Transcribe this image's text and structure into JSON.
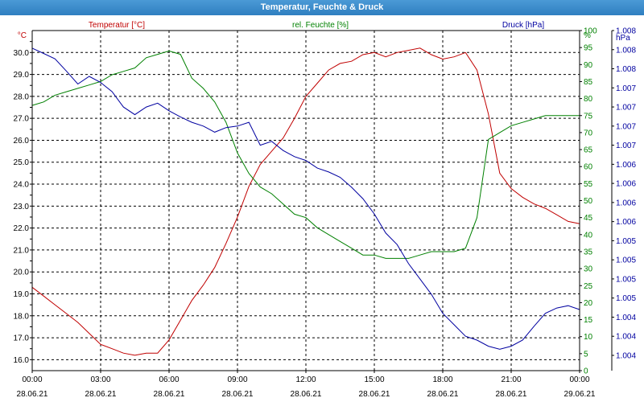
{
  "window": {
    "title": "Temperatur, Feuchte & Druck"
  },
  "colors": {
    "temperature": "#c00000",
    "humidity": "#008000",
    "pressure": "#0000a0",
    "axis": "#000000",
    "grid": "#000000"
  },
  "chart_data": {
    "type": "line",
    "title": "Temperatur, Feuchte & Druck",
    "grid": true,
    "x_ticks": [
      {
        "time": "00:00",
        "date": "28.06.21"
      },
      {
        "time": "03:00",
        "date": "28.06.21"
      },
      {
        "time": "06:00",
        "date": "28.06.21"
      },
      {
        "time": "09:00",
        "date": "28.06.21"
      },
      {
        "time": "12:00",
        "date": "28.06.21"
      },
      {
        "time": "15:00",
        "date": "28.06.21"
      },
      {
        "time": "18:00",
        "date": "28.06.21"
      },
      {
        "time": "21:00",
        "date": "28.06.21"
      },
      {
        "time": "00:00",
        "date": "29.06.21"
      }
    ],
    "x_range_hours": [
      0,
      24
    ],
    "axes": {
      "temperature": {
        "label": "Temperatur [°C]",
        "unit": "°C",
        "range": [
          15.5,
          31.0
        ],
        "ticks": [
          "16.0",
          "16.5",
          "17.0",
          "17.5",
          "18.0",
          "18.5",
          "19.0",
          "19.5",
          "20.0",
          "20.5",
          "21.0",
          "21.5",
          "22.0",
          "22.5",
          "23.0",
          "23.5",
          "24.0",
          "24.5",
          "25.0",
          "25.5",
          "26.0",
          "26.5",
          "27.0",
          "27.5",
          "28.0",
          "28.5",
          "29.0",
          "29.5",
          "30.0",
          "30.5"
        ],
        "tick_values": [
          16.0,
          16.5,
          17.0,
          17.5,
          18.0,
          18.5,
          19.0,
          19.5,
          20.0,
          20.5,
          21.0,
          21.5,
          22.0,
          22.5,
          23.0,
          23.5,
          24.0,
          24.5,
          25.0,
          25.5,
          26.0,
          26.5,
          27.0,
          27.5,
          28.0,
          28.5,
          29.0,
          29.5,
          30.0,
          30.5
        ]
      },
      "humidity": {
        "label": "rel. Feuchte [%]",
        "unit": "%",
        "range": [
          0,
          100
        ],
        "ticks": [
          "0",
          "5",
          "10",
          "15",
          "20",
          "25",
          "30",
          "35",
          "40",
          "45",
          "50",
          "55",
          "60",
          "65",
          "70",
          "75",
          "80",
          "85",
          "90",
          "95",
          "100"
        ],
        "tick_values": [
          0,
          5,
          10,
          15,
          20,
          25,
          30,
          35,
          40,
          45,
          50,
          55,
          60,
          65,
          70,
          75,
          80,
          85,
          90,
          95,
          100
        ]
      },
      "pressure": {
        "label": "Druck [hPa]",
        "unit": "hPa",
        "range": [
          1003.8,
          1008.25
        ],
        "ticks": [
          "1.004",
          "1.004",
          "1.004",
          "1.005",
          "1.005",
          "1.005",
          "1.005",
          "1.006",
          "1.006",
          "1.006",
          "1.006",
          "1.007",
          "1.007",
          "1.007",
          "1.007",
          "1.008",
          "1.008",
          "1.008"
        ],
        "tick_values": [
          1004.0,
          1004.25,
          1004.5,
          1004.75,
          1005.0,
          1005.25,
          1005.5,
          1005.75,
          1006.0,
          1006.25,
          1006.5,
          1006.75,
          1007.0,
          1007.25,
          1007.5,
          1007.75,
          1008.0,
          1008.25
        ]
      }
    },
    "series": [
      {
        "name": "Temperatur [°C]",
        "axis": "temperature",
        "x": [
          0,
          0.5,
          1,
          1.5,
          2,
          2.5,
          3,
          3.5,
          4,
          4.5,
          5,
          5.5,
          6,
          6.5,
          7,
          7.5,
          8,
          8.5,
          9,
          9.5,
          10,
          10.5,
          11,
          11.5,
          12,
          12.5,
          13,
          13.5,
          14,
          14.5,
          15,
          15.5,
          16,
          16.5,
          17,
          17.5,
          18,
          18.5,
          19,
          19.5,
          20,
          20.5,
          21,
          21.5,
          22,
          22.5,
          23,
          23.5,
          24
        ],
        "values": [
          19.3,
          18.9,
          18.5,
          18.1,
          17.7,
          17.2,
          16.7,
          16.5,
          16.3,
          16.2,
          16.3,
          16.3,
          16.9,
          17.8,
          18.7,
          19.4,
          20.2,
          21.3,
          22.5,
          23.9,
          24.9,
          25.5,
          26.1,
          27.0,
          28.0,
          28.6,
          29.2,
          29.5,
          29.6,
          29.9,
          30.0,
          29.8,
          30.0,
          30.1,
          30.2,
          29.9,
          29.7,
          29.8,
          30.0,
          29.2,
          27.2,
          24.5,
          23.8,
          23.4,
          23.1,
          22.9,
          22.6,
          22.3,
          22.2
        ]
      },
      {
        "name": "rel. Feuchte [%]",
        "axis": "humidity",
        "x": [
          0,
          0.5,
          1,
          1.5,
          2,
          2.5,
          3,
          3.5,
          4,
          4.5,
          5,
          5.5,
          6,
          6.5,
          7,
          7.5,
          8,
          8.5,
          9,
          9.5,
          10,
          10.5,
          11,
          11.5,
          12,
          12.5,
          13,
          13.5,
          14,
          14.5,
          15,
          15.5,
          16,
          16.5,
          17,
          17.5,
          18,
          18.5,
          19,
          19.5,
          20,
          20.5,
          21,
          21.5,
          22,
          22.5,
          23,
          23.5,
          24
        ],
        "values": [
          78,
          79,
          81,
          82,
          83,
          84,
          85,
          87,
          88,
          89,
          92,
          93,
          94,
          93,
          86,
          83,
          79,
          73,
          64,
          58,
          54,
          52,
          49,
          46,
          45,
          42,
          40,
          38,
          36,
          34,
          34,
          33,
          33,
          33,
          34,
          35,
          35,
          35,
          36,
          45,
          68,
          70,
          72,
          73,
          74,
          75,
          75,
          75,
          75
        ]
      },
      {
        "name": "Druck [hPa]",
        "axis": "pressure",
        "x": [
          0,
          0.5,
          1,
          1.5,
          2,
          2.5,
          3,
          3.5,
          4,
          4.5,
          5,
          5.5,
          6,
          6.5,
          7,
          7.5,
          8,
          8.5,
          9,
          9.5,
          10,
          10.5,
          11,
          11.5,
          12,
          12.5,
          13,
          13.5,
          14,
          14.5,
          15,
          15.5,
          16,
          16.5,
          17,
          17.5,
          18,
          18.5,
          19,
          19.5,
          20,
          20.5,
          21,
          21.5,
          22,
          22.5,
          23,
          23.5,
          24
        ],
        "values": [
          1008.02,
          1007.95,
          1007.88,
          1007.72,
          1007.55,
          1007.65,
          1007.57,
          1007.45,
          1007.25,
          1007.15,
          1007.25,
          1007.3,
          1007.2,
          1007.12,
          1007.05,
          1007.0,
          1006.92,
          1006.98,
          1007.0,
          1007.05,
          1006.75,
          1006.8,
          1006.68,
          1006.6,
          1006.55,
          1006.45,
          1006.4,
          1006.33,
          1006.2,
          1006.05,
          1005.85,
          1005.6,
          1005.45,
          1005.2,
          1005.0,
          1004.8,
          1004.55,
          1004.4,
          1004.25,
          1004.2,
          1004.12,
          1004.08,
          1004.12,
          1004.2,
          1004.38,
          1004.55,
          1004.62,
          1004.65,
          1004.6
        ]
      }
    ]
  }
}
